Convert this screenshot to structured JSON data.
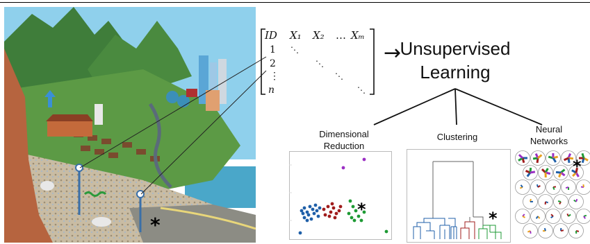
{
  "matrix": {
    "header": [
      "ID",
      "X₁",
      "X₂",
      "…",
      "Xₘ"
    ],
    "rows": [
      "1",
      "2",
      "⋮",
      "n"
    ],
    "dots": [
      "⋱",
      "⋱",
      "⋱",
      "⋱"
    ]
  },
  "arrow_glyph": "→",
  "title": {
    "line1": "Unsupervised",
    "line2": "Learning"
  },
  "branches": {
    "dimred": {
      "line1": "Dimensional",
      "line2": "Reduction"
    },
    "clustering": {
      "line1": "Clustering"
    },
    "neural": {
      "line1": "Neural",
      "line2": "Networks"
    }
  },
  "marker": "*",
  "colors": {
    "blue": "#1f5fa8",
    "red": "#a01c1c",
    "green": "#1e9a34",
    "purple": "#9b2fc4",
    "sky": "#8fd0ec",
    "mountain": "#3f7d3a",
    "soil": "#b6643f"
  }
}
